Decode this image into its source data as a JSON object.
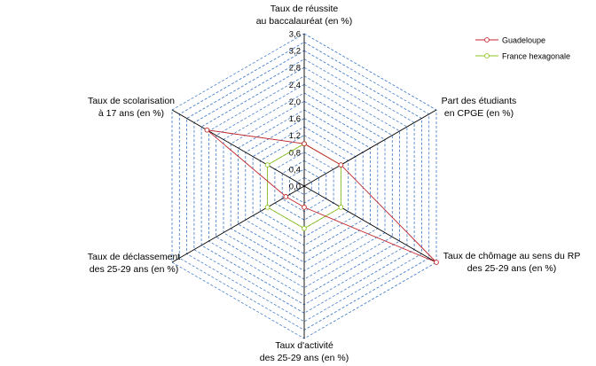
{
  "chart_data": {
    "type": "radar",
    "axes": [
      {
        "label_lines": [
          "Taux de réussite",
          "au baccalauréat (en %)"
        ]
      },
      {
        "label_lines": [
          "Part des étudiants",
          "en CPGE (en %)"
        ]
      },
      {
        "label_lines": [
          "Taux de chômage au sens du RP",
          "des 25-29 ans (en %)"
        ]
      },
      {
        "label_lines": [
          "Taux d'activité",
          "des 25-29 ans (en %)"
        ]
      },
      {
        "label_lines": [
          "Taux de déclassement",
          "des 25-29 ans (en %)"
        ]
      },
      {
        "label_lines": [
          "Taux de scolarisation",
          "à 17 ans (en %)"
        ]
      }
    ],
    "r_ticks": [
      "0,0",
      "0,4",
      "0,8",
      "1,2",
      "1,6",
      "2,0",
      "2,4",
      "2,8",
      "3,2",
      "3,6"
    ],
    "r_range": [
      0,
      3.6
    ],
    "grid_step": 0.2,
    "series": [
      {
        "name": "Guadeloupe",
        "color": "#c0262c",
        "values": [
          1.0,
          1.0,
          3.6,
          0.5,
          0.5,
          2.65
        ]
      },
      {
        "name": "France hexagonale",
        "color": "#8fc31f",
        "values": [
          1.0,
          1.0,
          1.0,
          1.0,
          1.0,
          1.0
        ]
      }
    ],
    "legend_position": "top-right",
    "grid": true
  }
}
